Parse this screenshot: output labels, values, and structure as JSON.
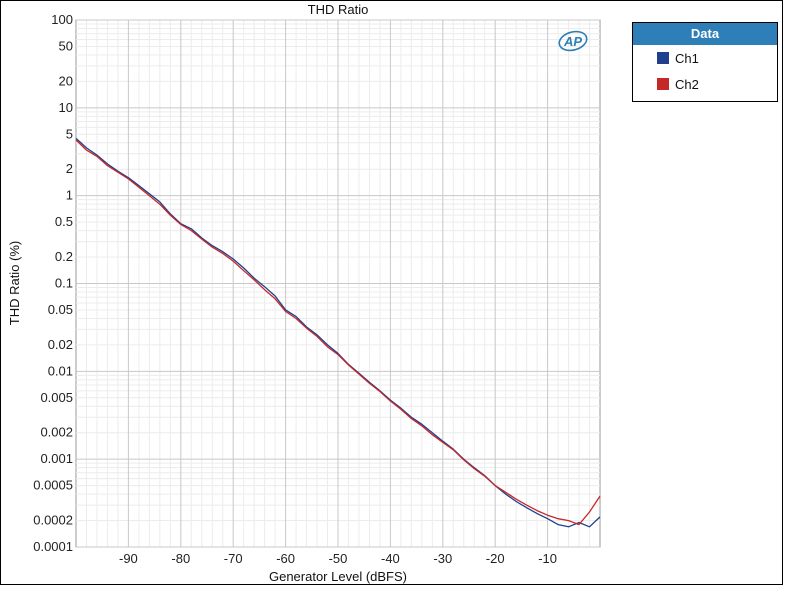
{
  "chart_data": {
    "type": "line",
    "title": "THD Ratio",
    "xlabel": "Generator Level (dBFS)",
    "ylabel": "THD Ratio (%)",
    "xlim": [
      -100,
      0
    ],
    "ylim": [
      0.0001,
      100
    ],
    "yscale": "log",
    "x_ticks": [
      -90,
      -80,
      -70,
      -60,
      -50,
      -40,
      -30,
      -20,
      -10
    ],
    "x_tick_labels": [
      "-90",
      "-80",
      "-70",
      "-60",
      "-50",
      "-40",
      "-30",
      "-20",
      "-10"
    ],
    "y_ticks": [
      100,
      50,
      20,
      10,
      5,
      2,
      1,
      0.5,
      0.2,
      0.1,
      0.05,
      0.02,
      0.01,
      0.005,
      0.002,
      0.001,
      0.0005,
      0.0002,
      0.0001
    ],
    "y_tick_labels": [
      "100",
      "50",
      "20",
      "10",
      "5",
      "2",
      "1",
      "0.5",
      "0.2",
      "0.1",
      "0.05",
      "0.02",
      "0.01",
      "0.005",
      "0.002",
      "0.001",
      "0.0005",
      "0.0002",
      "0.0001"
    ],
    "grid": true,
    "legend": {
      "title": "Data",
      "position": "right"
    },
    "series": [
      {
        "name": "Ch1",
        "color": "#1f3f8f",
        "x": [
          -100,
          -98,
          -96,
          -94,
          -92,
          -90,
          -88,
          -86,
          -84,
          -82,
          -80,
          -78,
          -76,
          -74,
          -72,
          -70,
          -68,
          -66,
          -64,
          -62,
          -60,
          -58,
          -56,
          -54,
          -52,
          -50,
          -48,
          -46,
          -44,
          -42,
          -40,
          -38,
          -36,
          -34,
          -32,
          -30,
          -28,
          -26,
          -24,
          -22,
          -20,
          -18,
          -16,
          -14,
          -12,
          -10,
          -8,
          -6,
          -4,
          -2,
          0
        ],
        "y": [
          4.5,
          3.5,
          2.9,
          2.3,
          1.9,
          1.6,
          1.3,
          1.05,
          0.85,
          0.62,
          0.48,
          0.42,
          0.33,
          0.27,
          0.23,
          0.19,
          0.15,
          0.115,
          0.092,
          0.072,
          0.05,
          0.042,
          0.032,
          0.026,
          0.02,
          0.016,
          0.012,
          0.0095,
          0.0075,
          0.006,
          0.0047,
          0.0038,
          0.003,
          0.0025,
          0.002,
          0.0016,
          0.0013,
          0.001,
          0.0008,
          0.00065,
          0.0005,
          0.0004,
          0.00033,
          0.00028,
          0.00024,
          0.00021,
          0.00018,
          0.00017,
          0.00019,
          0.00017,
          0.00022
        ]
      },
      {
        "name": "Ch2",
        "color": "#c62828",
        "x": [
          -100,
          -98,
          -96,
          -94,
          -92,
          -90,
          -88,
          -86,
          -84,
          -82,
          -80,
          -78,
          -76,
          -74,
          -72,
          -70,
          -68,
          -66,
          -64,
          -62,
          -60,
          -58,
          -56,
          -54,
          -52,
          -50,
          -48,
          -46,
          -44,
          -42,
          -40,
          -38,
          -36,
          -34,
          -32,
          -30,
          -28,
          -26,
          -24,
          -22,
          -20,
          -18,
          -16,
          -14,
          -12,
          -10,
          -8,
          -6,
          -4,
          -2,
          0
        ],
        "y": [
          4.3,
          3.3,
          2.8,
          2.2,
          1.85,
          1.55,
          1.25,
          1.0,
          0.8,
          0.6,
          0.47,
          0.4,
          0.32,
          0.26,
          0.22,
          0.18,
          0.14,
          0.11,
          0.085,
          0.067,
          0.048,
          0.04,
          0.031,
          0.025,
          0.019,
          0.0155,
          0.0118,
          0.0093,
          0.0073,
          0.0059,
          0.0046,
          0.0037,
          0.0029,
          0.0024,
          0.0019,
          0.00155,
          0.00128,
          0.00098,
          0.00078,
          0.00064,
          0.0005,
          0.00042,
          0.00035,
          0.0003,
          0.00026,
          0.00023,
          0.00021,
          0.0002,
          0.00018,
          0.00025,
          0.00038
        ]
      }
    ]
  }
}
